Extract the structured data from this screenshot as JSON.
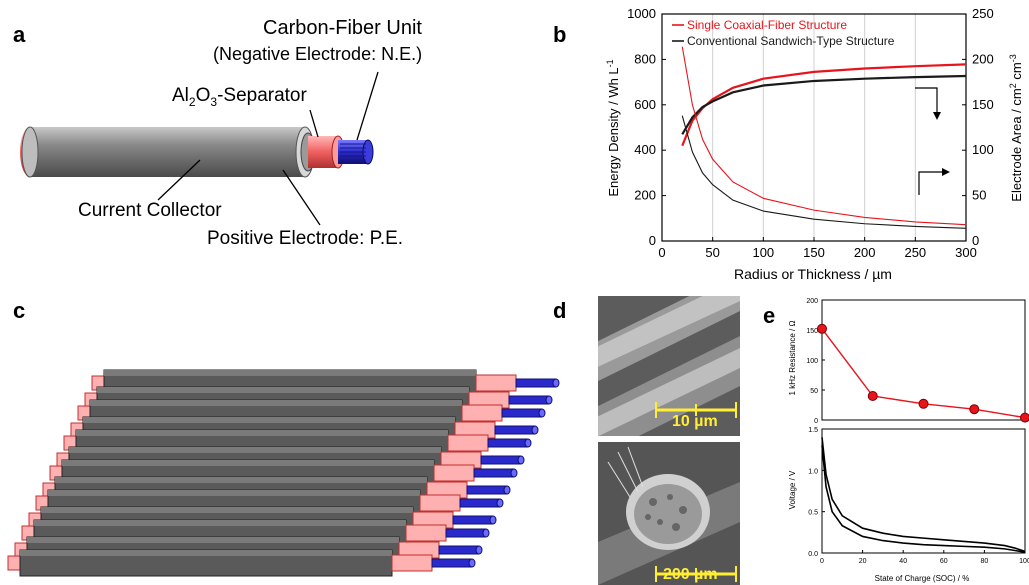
{
  "panels": {
    "a": "a",
    "b": "b",
    "c": "c",
    "d": "d",
    "e": "e"
  },
  "panel_a": {
    "carbon_fiber_unit": "Carbon-Fiber Unit",
    "negative_electrode": "(Negative Electrode: N.E.)",
    "separator_prefix": "Al",
    "separator_sub1": "2",
    "separator_mid": "O",
    "separator_sub2": "3",
    "separator_suffix": "-Separator",
    "current_collector": "Current Collector",
    "positive_electrode": "Positive Electrode: P.E."
  },
  "panel_d": {
    "scale_top": "10 µm",
    "scale_bottom": "200 µm"
  },
  "chart_data": [
    {
      "type": "line",
      "panel": "b",
      "xlabel": "Radius or Thickness  /  µm",
      "ylabel_left": "Energy Density  /  Wh L-1",
      "ylabel_right": "Electrode Area  /  cm2 cm-3",
      "xlim": [
        0,
        300
      ],
      "ylim_left": [
        0,
        1000
      ],
      "ylim_right": [
        0,
        250
      ],
      "x_ticks": [
        0,
        50,
        100,
        150,
        200,
        250,
        300
      ],
      "y_ticks_left": [
        0,
        200,
        400,
        600,
        800,
        1000
      ],
      "y_ticks_right": [
        0,
        50,
        100,
        150,
        200,
        250
      ],
      "legend": {
        "placement": "top",
        "entries": [
          "Single Coaxial-Fiber Structure",
          "Conventional Sandwich-Type Structure"
        ]
      },
      "grid": "vertical",
      "colors": {
        "coaxial": "#e8141c",
        "sandwich": "#1a1a1a"
      },
      "series": [
        {
          "name": "Single Coaxial-Fiber Structure",
          "axis": "left",
          "x": [
            20,
            30,
            40,
            50,
            70,
            100,
            150,
            200,
            250,
            300
          ],
          "values": [
            420,
            530,
            585,
            625,
            675,
            715,
            745,
            760,
            770,
            778
          ]
        },
        {
          "name": "Conventional Sandwich-Type Structure",
          "axis": "left",
          "x": [
            20,
            30,
            40,
            50,
            70,
            100,
            150,
            200,
            250,
            300
          ],
          "values": [
            470,
            545,
            590,
            615,
            655,
            685,
            705,
            715,
            722,
            727
          ]
        },
        {
          "name": "Single Coaxial-Fiber Structure",
          "axis": "right",
          "x": [
            20,
            30,
            40,
            50,
            70,
            100,
            150,
            200,
            250,
            300
          ],
          "values": [
            214,
            150,
            112,
            90,
            65,
            47,
            34,
            26,
            21,
            18
          ]
        },
        {
          "name": "Conventional Sandwich-Type Structure",
          "axis": "right",
          "x": [
            20,
            30,
            40,
            50,
            70,
            100,
            150,
            200,
            250,
            300
          ],
          "values": [
            138,
            98,
            75,
            62,
            45,
            33,
            24,
            19,
            16,
            14
          ]
        }
      ]
    },
    {
      "type": "line",
      "panel": "e-top",
      "ylabel": "1 kHz Resistance  /  Ω",
      "ylim": [
        0,
        200
      ],
      "y_ticks": [
        0,
        50,
        100,
        150,
        200
      ],
      "xlim": [
        0,
        100
      ],
      "color": "#e8141c",
      "series": [
        {
          "x": [
            0,
            25,
            50,
            75,
            100
          ],
          "values": [
            152,
            40,
            27,
            18,
            4
          ]
        }
      ]
    },
    {
      "type": "line",
      "panel": "e-bottom",
      "xlabel": "State of Charge (SOC)  /  %",
      "ylabel": "Voltage  /  V",
      "xlim": [
        0,
        100
      ],
      "ylim": [
        0,
        1.5
      ],
      "x_ticks": [
        0,
        20,
        40,
        60,
        80,
        100
      ],
      "y_ticks": [
        0,
        0.5,
        1.0,
        1.5
      ],
      "series": [
        {
          "x": [
            0,
            2,
            5,
            10,
            20,
            30,
            40,
            50,
            60,
            70,
            80,
            90,
            95,
            100
          ],
          "values": [
            1.4,
            0.95,
            0.65,
            0.45,
            0.3,
            0.24,
            0.2,
            0.18,
            0.16,
            0.14,
            0.12,
            0.09,
            0.06,
            0.02
          ]
        },
        {
          "x": [
            0,
            2,
            5,
            10,
            20,
            30,
            40,
            50,
            60,
            70,
            80,
            90,
            95,
            100
          ],
          "values": [
            1.3,
            0.8,
            0.5,
            0.33,
            0.2,
            0.15,
            0.12,
            0.1,
            0.09,
            0.08,
            0.07,
            0.05,
            0.03,
            0.01
          ]
        }
      ]
    }
  ]
}
